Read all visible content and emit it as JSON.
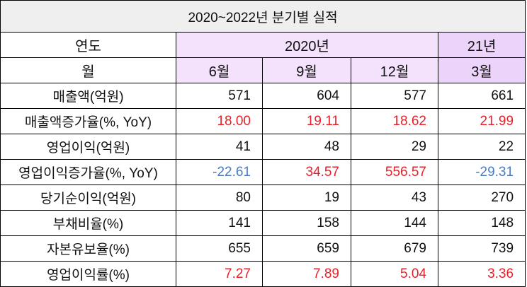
{
  "title": "2020~2022년 분기별 실적",
  "header": {
    "year_label": "연도",
    "year_2020": "2020년",
    "year_2021": "21년",
    "month_label": "월",
    "months": [
      "6월",
      "9월",
      "12월",
      "3월"
    ]
  },
  "colors": {
    "header_bg": "#f4e2fc",
    "header_2021_bg": "#ecd3f9",
    "title_bg": "#efefef",
    "positive": "#e8212b",
    "negative": "#4a7cc4"
  },
  "rows": [
    {
      "label": "매출액(억원)",
      "values": [
        "571",
        "604",
        "577",
        "661"
      ],
      "tone": [
        "",
        "",
        "",
        ""
      ]
    },
    {
      "label": "매출액증가율(%, YoY)",
      "values": [
        "18.00",
        "19.11",
        "18.62",
        "21.99"
      ],
      "tone": [
        "red",
        "red",
        "red",
        "red"
      ]
    },
    {
      "label": "영업이익(억원)",
      "values": [
        "41",
        "48",
        "29",
        "22"
      ],
      "tone": [
        "",
        "",
        "",
        ""
      ]
    },
    {
      "label": "영업이익증가율(%, YoY)",
      "values": [
        "-22.61",
        "34.57",
        "556.57",
        "-29.31"
      ],
      "tone": [
        "blue",
        "red",
        "red",
        "blue"
      ]
    },
    {
      "label": "당기순이익(억원)",
      "values": [
        "80",
        "19",
        "43",
        "270"
      ],
      "tone": [
        "",
        "",
        "",
        ""
      ]
    },
    {
      "label": "부채비율(%)",
      "values": [
        "141",
        "158",
        "144",
        "148"
      ],
      "tone": [
        "",
        "",
        "",
        ""
      ]
    },
    {
      "label": "자본유보율(%)",
      "values": [
        "655",
        "659",
        "679",
        "739"
      ],
      "tone": [
        "",
        "",
        "",
        ""
      ]
    },
    {
      "label": "영업이익률(%)",
      "values": [
        "7.27",
        "7.89",
        "5.04",
        "3.36"
      ],
      "tone": [
        "red",
        "red",
        "red",
        "red"
      ]
    }
  ]
}
